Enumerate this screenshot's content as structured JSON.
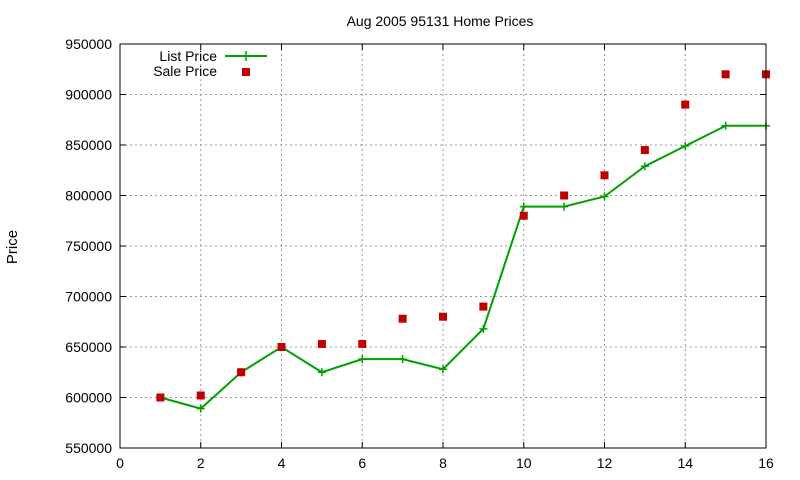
{
  "chart_data": {
    "type": "line",
    "title": "Aug 2005 95131 Home Prices",
    "xlabel": "",
    "ylabel": "Price",
    "xlim": [
      0,
      16
    ],
    "ylim": [
      550000,
      950000
    ],
    "xticks": [
      0,
      2,
      4,
      6,
      8,
      10,
      12,
      14,
      16
    ],
    "yticks": [
      550000,
      600000,
      650000,
      700000,
      750000,
      800000,
      850000,
      900000,
      950000
    ],
    "grid": true,
    "legend_position": "top-left",
    "series": [
      {
        "name": "List Price",
        "style": "linespoints",
        "marker": "plus",
        "color": "#00a000",
        "x": [
          1,
          2,
          3,
          4,
          5,
          6,
          7,
          8,
          9,
          10,
          11,
          12,
          13,
          14,
          15,
          16
        ],
        "y": [
          600000,
          589000,
          625000,
          650000,
          625000,
          638000,
          638000,
          628000,
          668000,
          789000,
          789000,
          799000,
          829000,
          849000,
          869000,
          869000
        ]
      },
      {
        "name": "Sale Price",
        "style": "points",
        "marker": "square",
        "color": "#c00000",
        "x": [
          1,
          2,
          3,
          4,
          5,
          6,
          7,
          8,
          9,
          10,
          11,
          12,
          13,
          14,
          15,
          16
        ],
        "y": [
          600000,
          602000,
          625000,
          650000,
          653000,
          653000,
          678000,
          680000,
          690000,
          780000,
          800000,
          820000,
          845000,
          890000,
          920000,
          920000
        ]
      }
    ]
  }
}
